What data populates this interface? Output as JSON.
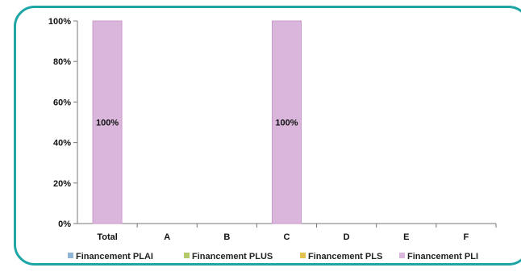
{
  "chart_data": {
    "type": "bar",
    "stacked": true,
    "categories": [
      "Total",
      "A",
      "B",
      "C",
      "D",
      "E",
      "F"
    ],
    "yticks": [
      "0%",
      "20%",
      "40%",
      "60%",
      "80%",
      "100%"
    ],
    "ylim": [
      0,
      100
    ],
    "grid": false,
    "legend_position": "bottom",
    "series": [
      {
        "name": "Financement PLAI",
        "color": "#8fb4d6",
        "values": [
          0,
          0,
          0,
          0,
          0,
          0,
          0
        ]
      },
      {
        "name": "Financement PLUS",
        "color": "#b4c96a",
        "values": [
          0,
          0,
          0,
          0,
          0,
          0,
          0
        ]
      },
      {
        "name": "Financement PLS",
        "color": "#e3c14f",
        "values": [
          0,
          0,
          0,
          0,
          0,
          0,
          0
        ]
      },
      {
        "name": "Financement PLI",
        "color": "#dbb6dc",
        "values": [
          100,
          0,
          0,
          100,
          0,
          0,
          0
        ]
      }
    ],
    "data_labels": [
      "100%",
      "",
      "",
      "100%",
      "",
      "",
      ""
    ]
  }
}
